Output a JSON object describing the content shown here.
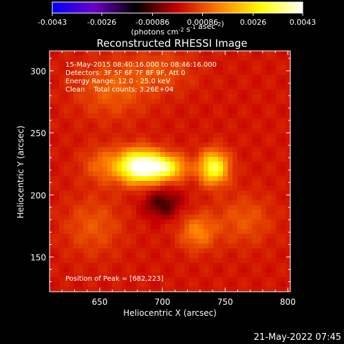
{
  "chart_data": {
    "type": "heatmap",
    "title": "Reconstructed RHESSI Image",
    "xlabel": "Heliocentric X (arcsec)",
    "ylabel": "Heliocentric Y (arcsec)",
    "xlim": [
      610,
      802
    ],
    "ylim": [
      122,
      316
    ],
    "xticks": [
      650,
      700,
      750,
      800
    ],
    "yticks": [
      150,
      200,
      250,
      300
    ],
    "colorbar": {
      "min": -0.0043,
      "max": 0.0043,
      "tick_labels": [
        "-0.0043",
        "-0.0026",
        "-0.00086",
        "0.00086",
        "0.0026",
        "0.0043"
      ],
      "units": "(photons cm<sup>-2</sup> s<sup>-1</sup> asec<sup>-2</sup>)",
      "colors": [
        "#0000ff",
        "#6a00c8",
        "#000000",
        "#c80000",
        "#ff8000",
        "#ffff00",
        "#ffffff"
      ]
    },
    "sources": [
      {
        "x": 682,
        "y": 223,
        "amplitude": 0.0043,
        "sx": 12,
        "sy": 9
      },
      {
        "x": 703,
        "y": 222,
        "amplitude": 0.0026,
        "sx": 11,
        "sy": 7
      },
      {
        "x": 741,
        "y": 222,
        "amplitude": 0.0031,
        "sx": 8,
        "sy": 9
      },
      {
        "x": 653,
        "y": 224,
        "amplitude": 0.0009,
        "sx": 12,
        "sy": 10
      },
      {
        "x": 728,
        "y": 170,
        "amplitude": 0.0012,
        "sx": 10,
        "sy": 10
      },
      {
        "x": 645,
        "y": 175,
        "amplitude": 0.0007,
        "sx": 16,
        "sy": 16
      },
      {
        "x": 765,
        "y": 180,
        "amplitude": 0.0007,
        "sx": 16,
        "sy": 14
      },
      {
        "x": 660,
        "y": 285,
        "amplitude": 0.0008,
        "sx": 20,
        "sy": 16
      },
      {
        "x": 700,
        "y": 300,
        "amplitude": 0.0006,
        "sx": 18,
        "sy": 12
      }
    ],
    "background_level": 0.0004
  },
  "annotations": {
    "time_range": "15-May-2015 08:40:16.000 to 08:46:16.000",
    "detectors": "Detectors: 3F 5F 6F 7F 8F 9F, Att 0",
    "energy_range": "Energy Range: 12.0 - 25.0 keV",
    "clean": "Clean    Total counts: 3.26E+04",
    "peak": "Position of Peak = [682,223]"
  },
  "footer": {
    "timestamp": "21-May-2022 07:45"
  }
}
